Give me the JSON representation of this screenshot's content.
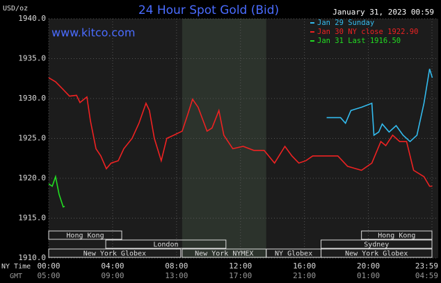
{
  "chart_data": {
    "type": "line",
    "title": "24 Hour Spot Gold (Bid)",
    "subtitle": "January 31, 2023 00:59",
    "y_label": "USD/oz",
    "watermark": "www.kitco.com",
    "x_label": "NY Time",
    "x2_label": "GMT",
    "xlim": [
      0,
      23.98
    ],
    "ylim": [
      1910,
      1940
    ],
    "yticks": [
      {
        "value": 1910,
        "label": "1910.0"
      },
      {
        "value": 1915,
        "label": "1915.0"
      },
      {
        "value": 1920,
        "label": "1920.0"
      },
      {
        "value": 1925,
        "label": "1925.0"
      },
      {
        "value": 1930,
        "label": "1930.0"
      },
      {
        "value": 1935,
        "label": "1935.0"
      },
      {
        "value": 1940,
        "label": "1940.0"
      }
    ],
    "xticks": [
      {
        "value": 0,
        "label": "00:00"
      },
      {
        "value": 4,
        "label": "04:00"
      },
      {
        "value": 8,
        "label": "08:00"
      },
      {
        "value": 12,
        "label": "12:00"
      },
      {
        "value": 16,
        "label": "16:00"
      },
      {
        "value": 20,
        "label": "20:00"
      },
      {
        "value": 23.98,
        "label": "23:59"
      }
    ],
    "x2ticks": [
      {
        "value": 0,
        "label": "05:00"
      },
      {
        "value": 4,
        "label": "09:00"
      },
      {
        "value": 8,
        "label": "13:00"
      },
      {
        "value": 12,
        "label": "17:00"
      },
      {
        "value": 16,
        "label": "21:00"
      },
      {
        "value": 20,
        "label": "01:00"
      },
      {
        "value": 23.98,
        "label": "04:59"
      }
    ],
    "grid": true,
    "legend": "upper right",
    "series": [
      {
        "name": "Jan 29 Sunday",
        "color": "#33bbee",
        "x": [
          17.39,
          18.26,
          18.57,
          18.91,
          19.57,
          20.22,
          20.35,
          20.65,
          20.87,
          21.3,
          21.74,
          22.17,
          22.61,
          23.04,
          23.48,
          23.83,
          24.0
        ],
        "values": [
          1927.6,
          1927.6,
          1926.9,
          1928.5,
          1928.9,
          1929.4,
          1925.4,
          1925.8,
          1926.8,
          1925.8,
          1926.6,
          1925.4,
          1924.6,
          1925.4,
          1929.4,
          1933.7,
          1932.6
        ]
      },
      {
        "name": "Jan 30 NY close 1922.90",
        "color": "#ee2222",
        "x": [
          0,
          0.43,
          0.87,
          1.3,
          1.74,
          1.96,
          2.39,
          2.61,
          2.96,
          3.26,
          3.61,
          3.91,
          4.35,
          4.7,
          5.22,
          5.65,
          6.09,
          6.3,
          6.61,
          7.04,
          7.39,
          7.83,
          8.35,
          8.7,
          9.0,
          9.35,
          9.91,
          10.22,
          10.65,
          10.96,
          11.52,
          12.17,
          12.83,
          13.48,
          14.13,
          14.78,
          15.22,
          15.65,
          16.09,
          16.52,
          16.96,
          18.09,
          18.7,
          19.57,
          20.22,
          20.78,
          21.09,
          21.52,
          21.96,
          22.39,
          22.83,
          23.48,
          23.83,
          24.0
        ],
        "values": [
          1932.6,
          1932.1,
          1931.2,
          1930.3,
          1930.4,
          1929.5,
          1930.2,
          1927.2,
          1923.7,
          1922.8,
          1921.2,
          1921.9,
          1922.2,
          1923.7,
          1925.0,
          1926.9,
          1929.4,
          1928.5,
          1925.0,
          1922.2,
          1925.0,
          1925.4,
          1925.9,
          1928.0,
          1929.9,
          1928.9,
          1925.9,
          1926.3,
          1928.5,
          1925.4,
          1923.7,
          1924.0,
          1923.5,
          1923.5,
          1921.9,
          1924.0,
          1922.8,
          1921.9,
          1922.2,
          1922.8,
          1922.8,
          1922.8,
          1921.5,
          1921.0,
          1921.9,
          1924.6,
          1924.1,
          1925.4,
          1924.6,
          1924.6,
          1921.0,
          1920.2,
          1919.0,
          1919.0
        ]
      },
      {
        "name": "Jan 31 Last 1916.50",
        "color": "#22dd22",
        "x": [
          0,
          0.22,
          0.43,
          0.65,
          0.91,
          1.0
        ],
        "values": [
          1919.3,
          1919.0,
          1920.2,
          1918.0,
          1916.4,
          1916.5
        ]
      }
    ],
    "sessions": [
      {
        "label": "Hong Kong",
        "start": 0,
        "end": 4.57,
        "row": 0
      },
      {
        "label": "Hong Kong",
        "start": 19.57,
        "end": 23.98,
        "row": 0
      },
      {
        "label": "London",
        "start": 3.57,
        "end": 11.09,
        "row": 1
      },
      {
        "label": "Sydney",
        "start": 17.04,
        "end": 23.98,
        "row": 1
      },
      {
        "label": "New York Globex",
        "start": 0,
        "end": 8.26,
        "row": 2
      },
      {
        "label": "New York NYMEX",
        "start": 8.35,
        "end": 13.61,
        "row": 2,
        "shade": true
      },
      {
        "label": "NY Globex",
        "start": 13.61,
        "end": 17.04,
        "row": 2
      },
      {
        "label": "New York Globex",
        "start": 17.04,
        "end": 23.98,
        "row": 2
      }
    ]
  }
}
